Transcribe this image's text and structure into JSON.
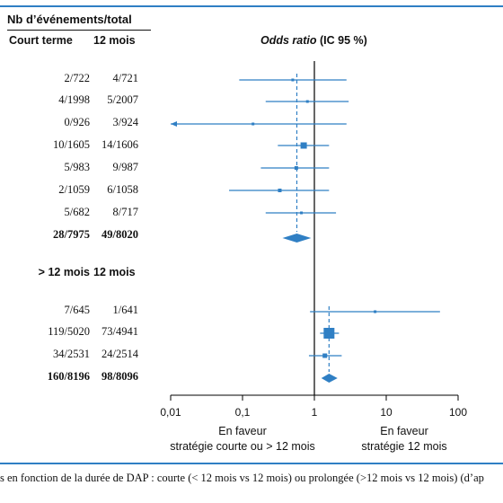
{
  "header": {
    "title": "Nb d’événements/total",
    "col_short": "Court terme",
    "col_long": "12 mois",
    "odds_ratio_title": "Odds ratio",
    "odds_ratio_suffix": " (IC 95 %)"
  },
  "subheader2": {
    "col_short": "> 12 mois",
    "col_long": "12 mois"
  },
  "x_axis": {
    "tick_labels": [
      "0,01",
      "0,1",
      "1",
      "10",
      "100"
    ],
    "left_note_line1": "En faveur",
    "left_note_line2": "stratégie courte ou > 12 mois",
    "right_note_line1": "En faveur",
    "right_note_line2": "stratégie  12 mois"
  },
  "caption": "s en fonction de la durée de DAP : courte (< 12 mois vs 12 mois) ou prolongée (>12 mois vs 12 mois) (d’ap",
  "colors": {
    "accent": "#2f7fc4",
    "axis": "#000000",
    "text": "#111111"
  },
  "chart_data": {
    "type": "forest",
    "x_scale": "log",
    "xlim": [
      0.01,
      100
    ],
    "reference_line": 1,
    "groups": [
      {
        "rows": [
          {
            "short": "2/722",
            "long": "4/721",
            "or": 0.5,
            "lo": 0.09,
            "hi": 2.8
          },
          {
            "short": "4/1998",
            "long": "5/2007",
            "or": 0.8,
            "lo": 0.21,
            "hi": 3.0
          },
          {
            "short": "0/926",
            "long": "3/924",
            "or": 0.14,
            "lo": 0.007,
            "hi": 2.8
          },
          {
            "short": "10/1605",
            "long": "14/1606",
            "or": 0.71,
            "lo": 0.31,
            "hi": 1.6
          },
          {
            "short": "5/983",
            "long": "9/987",
            "or": 0.56,
            "lo": 0.18,
            "hi": 1.6
          },
          {
            "short": "2/1059",
            "long": "6/1058",
            "or": 0.33,
            "lo": 0.065,
            "hi": 1.6
          },
          {
            "short": "5/682",
            "long": "8/717",
            "or": 0.66,
            "lo": 0.21,
            "hi": 2.0
          }
        ],
        "total": {
          "short": "28/7975",
          "long": "49/8020",
          "or": 0.57,
          "lo": 0.36,
          "hi": 0.9
        }
      },
      {
        "rows": [
          {
            "short": "7/645",
            "long": "1/641",
            "or": 7.0,
            "lo": 0.87,
            "hi": 56
          },
          {
            "short": "119/5020",
            "long": "73/4941",
            "or": 1.6,
            "lo": 1.2,
            "hi": 2.2
          },
          {
            "short": "34/2531",
            "long": "24/2514",
            "or": 1.4,
            "lo": 0.84,
            "hi": 2.4
          }
        ],
        "total": {
          "short": "160/8196",
          "long": "98/8096",
          "or": 1.6,
          "lo": 1.25,
          "hi": 2.1
        }
      }
    ]
  }
}
